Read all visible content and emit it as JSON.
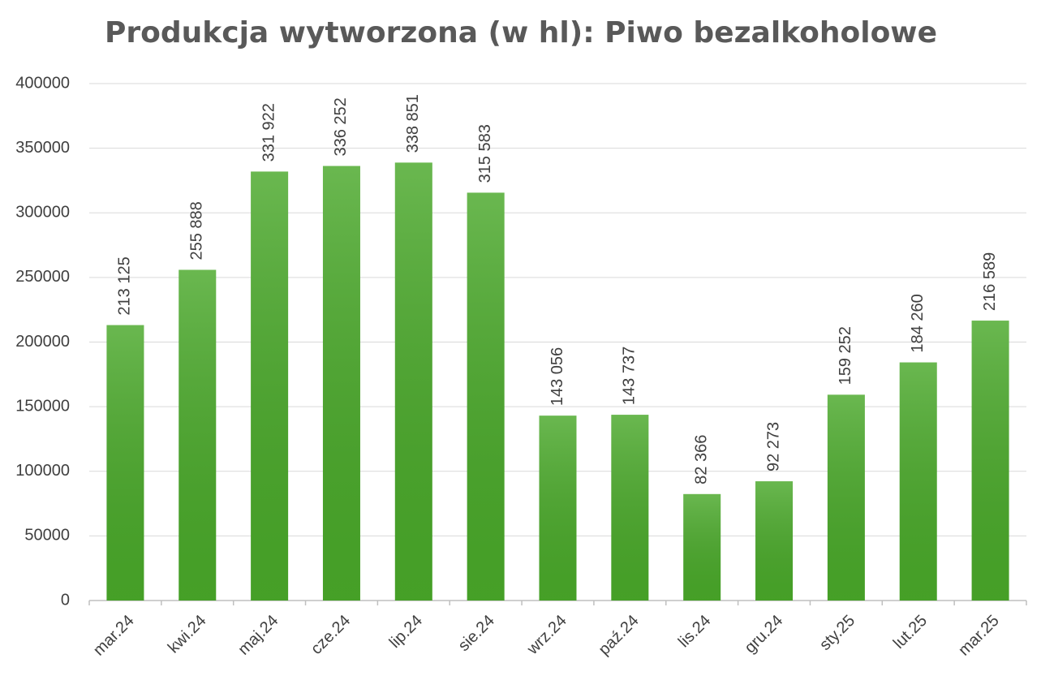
{
  "chart_data": {
    "type": "bar",
    "title": "Produkcja wytworzona (w hl): Piwo bezalkoholowe",
    "categories": [
      "mar.24",
      "kwi.24",
      "maj.24",
      "cze.24",
      "lip.24",
      "sie.24",
      "wrz.24",
      "paź.24",
      "lis.24",
      "gru.24",
      "sty.25",
      "lut.25",
      "mar.25"
    ],
    "values": [
      213125,
      255888,
      331922,
      336252,
      338851,
      315583,
      143056,
      143737,
      82366,
      92273,
      159252,
      184260,
      216589
    ],
    "value_labels": [
      "213 125",
      "255 888",
      "331 922",
      "336 252",
      "338 851",
      "315 583",
      "143 056",
      "143 737",
      "82 366",
      "92 273",
      "159 252",
      "184 260",
      "216 589"
    ],
    "color": "#49a829",
    "ylim": [
      0,
      400000
    ],
    "yticks": [
      0,
      50000,
      100000,
      150000,
      200000,
      250000,
      300000,
      350000,
      400000
    ],
    "grid": true
  }
}
